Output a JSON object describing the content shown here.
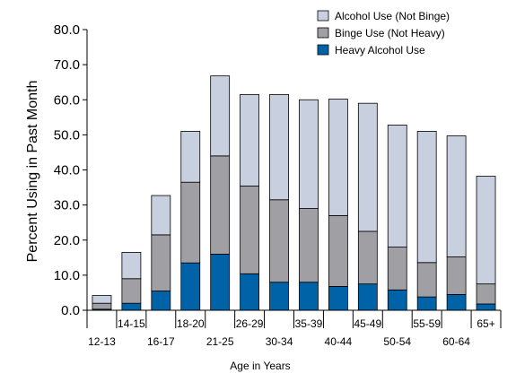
{
  "colors": {
    "alcohol_not_binge": "#c8d0e0",
    "binge_not_heavy": "#a0a0a4",
    "heavy": "#0063a8",
    "outline": "#000000"
  },
  "chart_data": {
    "type": "bar",
    "stacked": true,
    "xlabel": "Age in Years",
    "ylabel": "Percent Using in Past Month",
    "ylim": [
      0,
      80
    ],
    "yticks": [
      "0.0",
      "10.0",
      "20.0",
      "30.0",
      "40.0",
      "50.0",
      "60.0",
      "70.0",
      "80.0"
    ],
    "legend_placement": "top-right",
    "grid": false,
    "categories": [
      "12-13",
      "14-15",
      "16-17",
      "18-20",
      "21-25",
      "26-29",
      "30-34",
      "35-39",
      "40-44",
      "45-49",
      "50-54",
      "55-59",
      "60-64",
      "65+"
    ],
    "series": [
      {
        "name": "Heavy Alcohol Use",
        "color_key": "heavy",
        "values": [
          0.3,
          2.0,
          5.5,
          13.5,
          16.0,
          10.4,
          8.0,
          8.0,
          6.8,
          7.5,
          5.8,
          3.8,
          4.5,
          1.8
        ]
      },
      {
        "name": "Binge  Use (Not Heavy)",
        "color_key": "binge_not_heavy",
        "values": [
          1.7,
          7.0,
          16.0,
          23.0,
          28.0,
          25.0,
          23.5,
          21.0,
          20.2,
          15.0,
          12.2,
          9.8,
          10.7,
          5.7
        ]
      },
      {
        "name": "Alcohol Use (Not Binge)",
        "color_key": "alcohol_not_binge",
        "values": [
          2.2,
          7.5,
          11.2,
          14.5,
          22.8,
          26.1,
          30.0,
          31.0,
          33.2,
          36.5,
          34.8,
          37.4,
          34.5,
          30.7
        ]
      }
    ],
    "legend_order": [
      "Alcohol Use (Not Binge)",
      "Binge  Use (Not Heavy)",
      "Heavy Alcohol Use"
    ]
  }
}
